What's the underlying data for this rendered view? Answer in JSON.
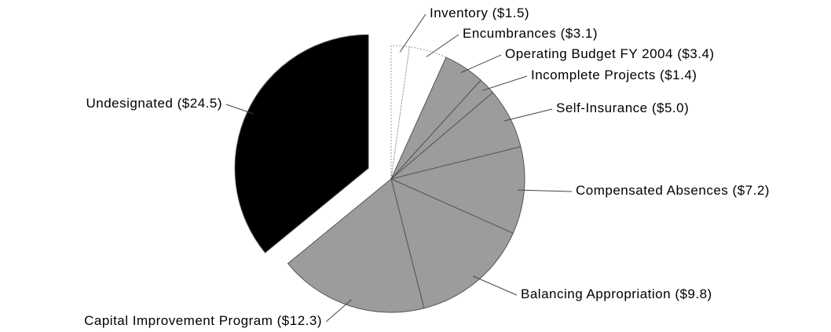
{
  "chart_data": {
    "type": "pie",
    "categories": [
      "Inventory",
      "Encumbrances",
      "Operating Budget FY 2004",
      "Incomplete Projects",
      "Self-Insurance",
      "Compensated Absences",
      "Balancing Appropriation",
      "Capital Improvement Program",
      "Undesignated"
    ],
    "values": [
      1.5,
      3.1,
      3.4,
      1.4,
      5.0,
      7.2,
      9.8,
      12.3,
      24.5
    ],
    "value_labels": [
      "($1.5)",
      "($3.1)",
      "($3.4)",
      "($1.4)",
      "($5.0)",
      "($7.2)",
      "($9.8)",
      "($12.3)",
      "($24.5)"
    ],
    "colors": [
      "#ffffff",
      "#ffffff",
      "#9c9c9c",
      "#9c9c9c",
      "#9c9c9c",
      "#9c9c9c",
      "#9c9c9c",
      "#9c9c9c",
      "#000000"
    ]
  }
}
